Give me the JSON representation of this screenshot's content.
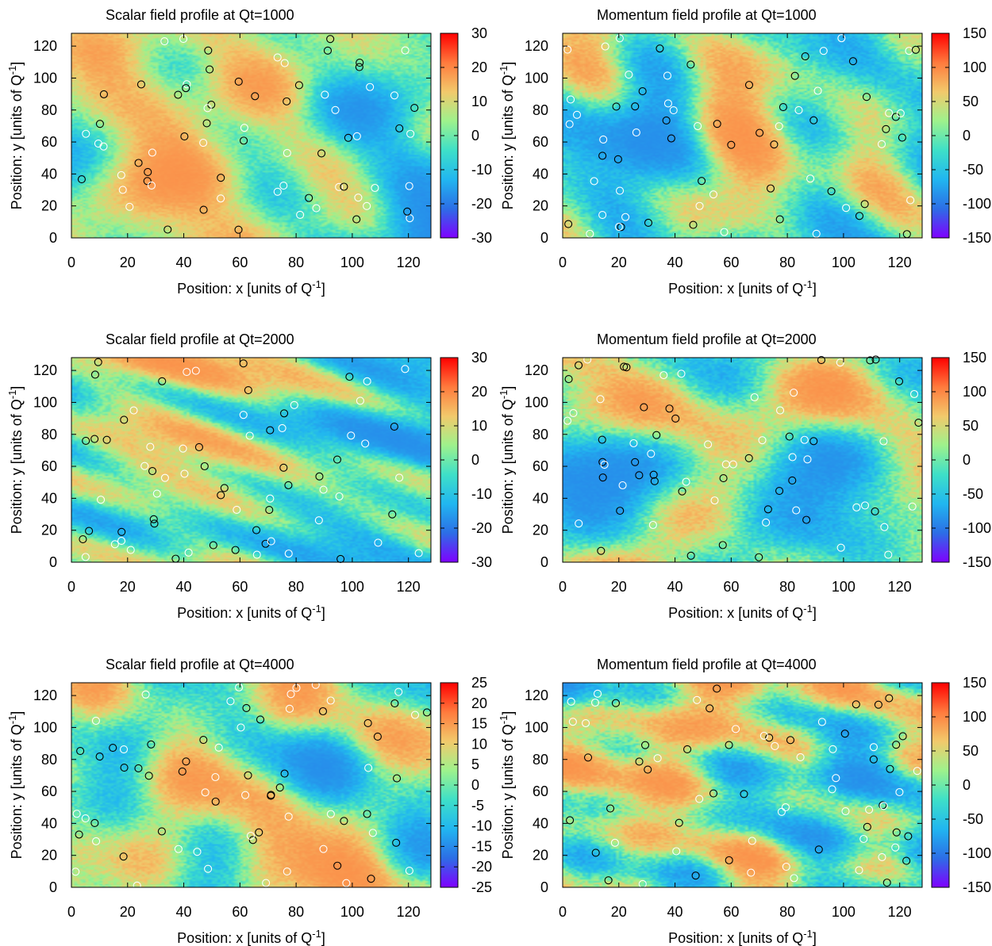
{
  "chart_data": [
    {
      "type": "heatmap",
      "title": "Scalar field profile at Qt=1000",
      "xlabel": "Position: x [units of Q",
      "ylabel": "Position: y [units of Q",
      "label_superscript": "-1",
      "label_close": "]",
      "xlim": [
        0,
        128
      ],
      "ylim": [
        0,
        128
      ],
      "xticks": [
        "0",
        "20",
        "40",
        "60",
        "80",
        "100",
        "120"
      ],
      "yticks": [
        "0",
        "20",
        "40",
        "60",
        "80",
        "100",
        "120"
      ],
      "colorbar": {
        "range": [
          -30,
          30
        ],
        "ticks": [
          "30",
          "20",
          "10",
          "0",
          "-10",
          "-20",
          "-30"
        ]
      },
      "seed": 11
    },
    {
      "type": "heatmap",
      "title": "Momentum field profile at Qt=1000",
      "xlabel": "Position: x [units of Q",
      "ylabel": "Position: y [units of Q",
      "label_superscript": "-1",
      "label_close": "]",
      "xlim": [
        0,
        128
      ],
      "ylim": [
        0,
        128
      ],
      "xticks": [
        "0",
        "20",
        "40",
        "60",
        "80",
        "100",
        "120"
      ],
      "yticks": [
        "0",
        "20",
        "40",
        "60",
        "80",
        "100",
        "120"
      ],
      "colorbar": {
        "range": [
          -150,
          150
        ],
        "ticks": [
          "150",
          "100",
          "50",
          "0",
          "-50",
          "-100",
          "-150"
        ]
      },
      "seed": 23
    },
    {
      "type": "heatmap",
      "title": "Scalar field profile at Qt=2000",
      "xlabel": "Position: x [units of Q",
      "ylabel": "Position: y [units of Q",
      "label_superscript": "-1",
      "label_close": "]",
      "xlim": [
        0,
        128
      ],
      "ylim": [
        0,
        128
      ],
      "xticks": [
        "0",
        "20",
        "40",
        "60",
        "80",
        "100",
        "120"
      ],
      "yticks": [
        "0",
        "20",
        "40",
        "60",
        "80",
        "100",
        "120"
      ],
      "colorbar": {
        "range": [
          -30,
          30
        ],
        "ticks": [
          "30",
          "20",
          "10",
          "0",
          "-10",
          "-20",
          "-30"
        ]
      },
      "seed": 37
    },
    {
      "type": "heatmap",
      "title": "Momentum field profile at Qt=2000",
      "xlabel": "Position: x [units of Q",
      "ylabel": "Position: y [units of Q",
      "label_superscript": "-1",
      "label_close": "]",
      "xlim": [
        0,
        128
      ],
      "ylim": [
        0,
        128
      ],
      "xticks": [
        "0",
        "20",
        "40",
        "60",
        "80",
        "100",
        "120"
      ],
      "yticks": [
        "0",
        "20",
        "40",
        "60",
        "80",
        "100",
        "120"
      ],
      "colorbar": {
        "range": [
          -150,
          150
        ],
        "ticks": [
          "150",
          "100",
          "50",
          "0",
          "-50",
          "-100",
          "-150"
        ]
      },
      "seed": 41
    },
    {
      "type": "heatmap",
      "title": "Scalar field profile at Qt=4000",
      "xlabel": "Position: x [units of Q",
      "ylabel": "Position: y [units of Q",
      "label_superscript": "-1",
      "label_close": "]",
      "xlim": [
        0,
        128
      ],
      "ylim": [
        0,
        128
      ],
      "xticks": [
        "0",
        "20",
        "40",
        "60",
        "80",
        "100",
        "120"
      ],
      "yticks": [
        "0",
        "20",
        "40",
        "60",
        "80",
        "100",
        "120"
      ],
      "colorbar": {
        "range": [
          -25,
          25
        ],
        "ticks": [
          "25",
          "20",
          "15",
          "10",
          "5",
          "0",
          "-5",
          "-10",
          "-15",
          "-20",
          "-25"
        ]
      },
      "seed": 53
    },
    {
      "type": "heatmap",
      "title": "Momentum field profile at Qt=4000",
      "xlabel": "Position: x [units of Q",
      "ylabel": "Position: y [units of Q",
      "label_superscript": "-1",
      "label_close": "]",
      "xlim": [
        0,
        128
      ],
      "ylim": [
        0,
        128
      ],
      "xticks": [
        "0",
        "20",
        "40",
        "60",
        "80",
        "100",
        "120"
      ],
      "yticks": [
        "0",
        "20",
        "40",
        "60",
        "80",
        "100",
        "120"
      ],
      "colorbar": {
        "range": [
          -150,
          150
        ],
        "ticks": [
          "150",
          "100",
          "50",
          "0",
          "-50",
          "-100",
          "-150"
        ]
      },
      "seed": 67
    }
  ],
  "colormap": [
    "#7f00ff",
    "#2c6ee6",
    "#21b6f0",
    "#3ee0c8",
    "#9ef28c",
    "#f2c96b",
    "#ff7a3d",
    "#ff0000"
  ],
  "markers": {
    "circle_colors": [
      "#000000",
      "#ffffff"
    ]
  }
}
